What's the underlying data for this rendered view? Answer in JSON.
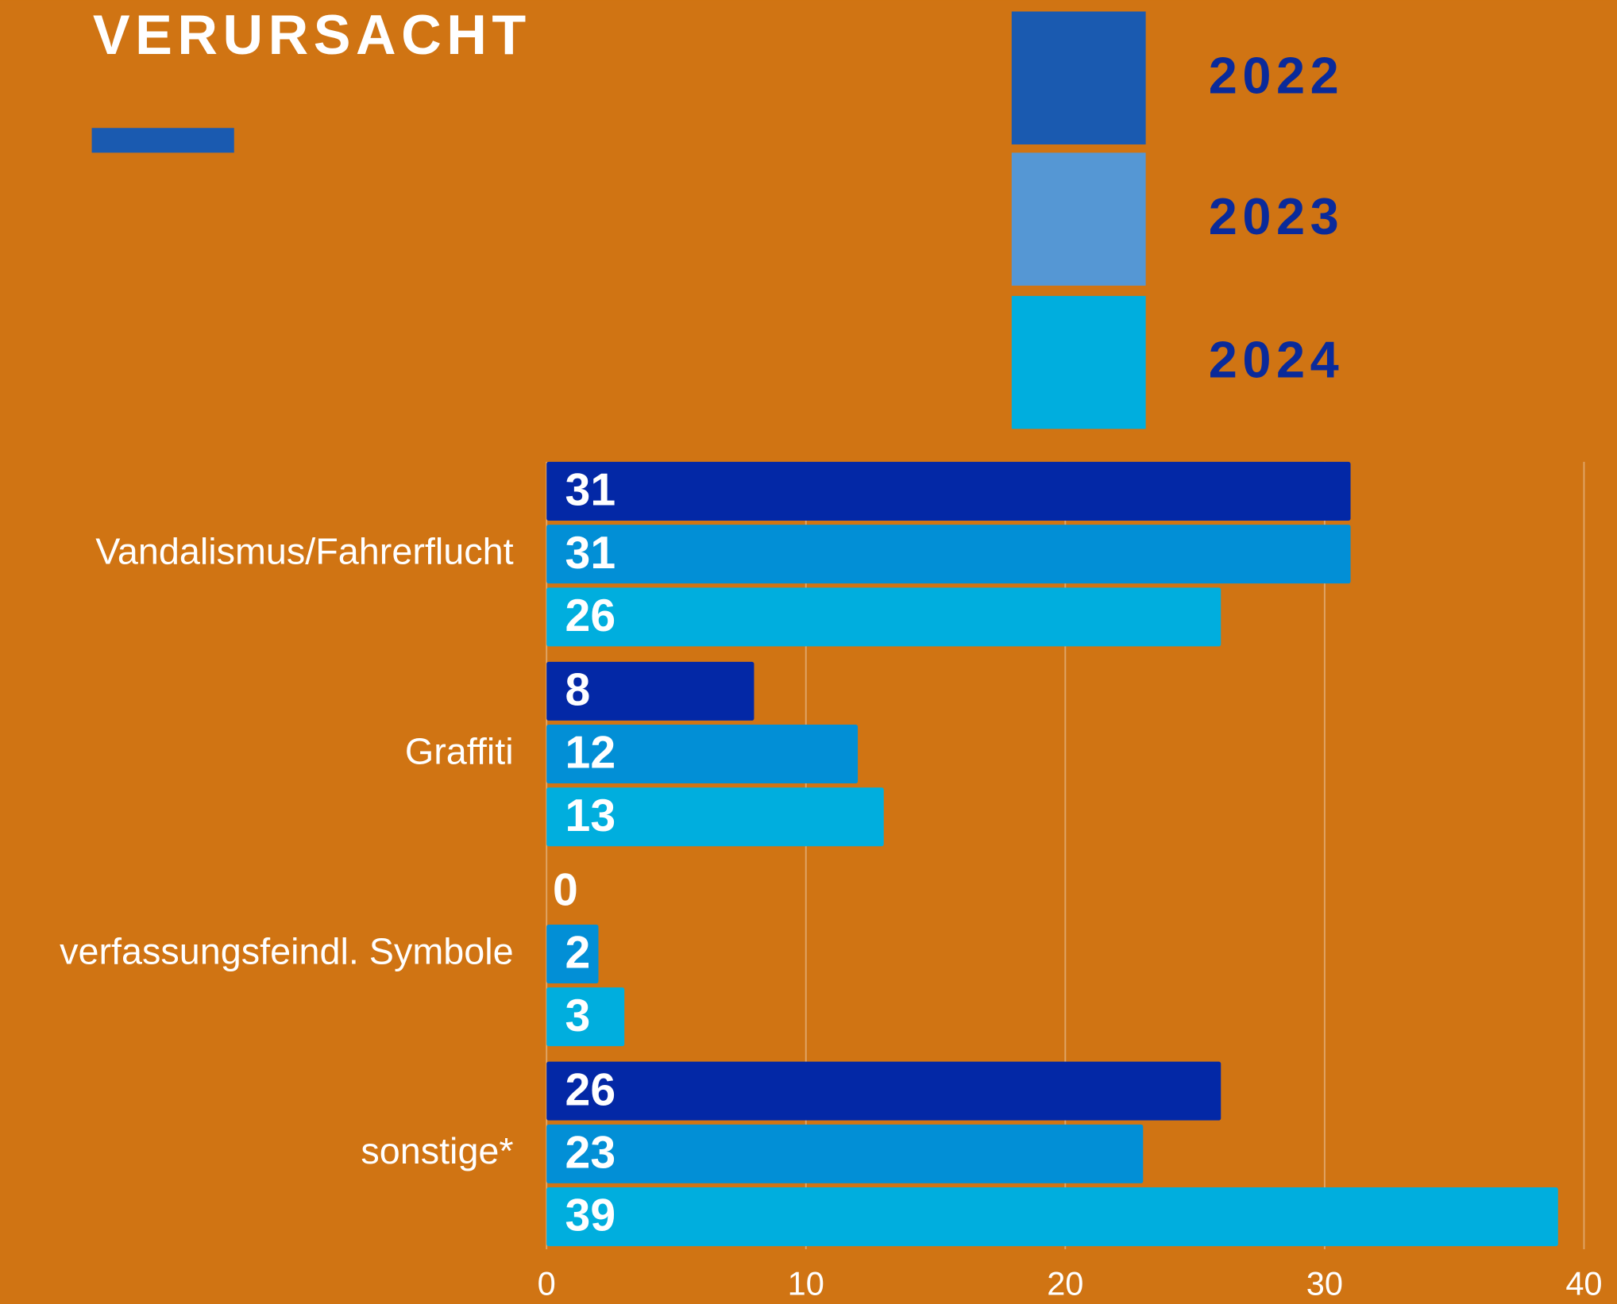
{
  "chart_data": {
    "type": "hbar",
    "title": "VERURSACHT",
    "categories": [
      "Vandalismus/Fahrerflucht",
      "Graffiti",
      "verfassungsfeindl. Symbole",
      "sonstige*"
    ],
    "series": [
      {
        "name": "2022",
        "color": "#0328a6",
        "legend_color": "#1a5ab0",
        "values": [
          31,
          8,
          0,
          26
        ]
      },
      {
        "name": "2023",
        "color": "#028fd6",
        "legend_color": "#5597d4",
        "values": [
          31,
          12,
          2,
          23
        ]
      },
      {
        "name": "2024",
        "color": "#00aede",
        "legend_color": "#00aede",
        "values": [
          26,
          13,
          3,
          39
        ]
      }
    ],
    "xlim": [
      0,
      40
    ],
    "xticks": [
      0,
      10,
      20,
      30,
      40
    ],
    "grid": true
  }
}
